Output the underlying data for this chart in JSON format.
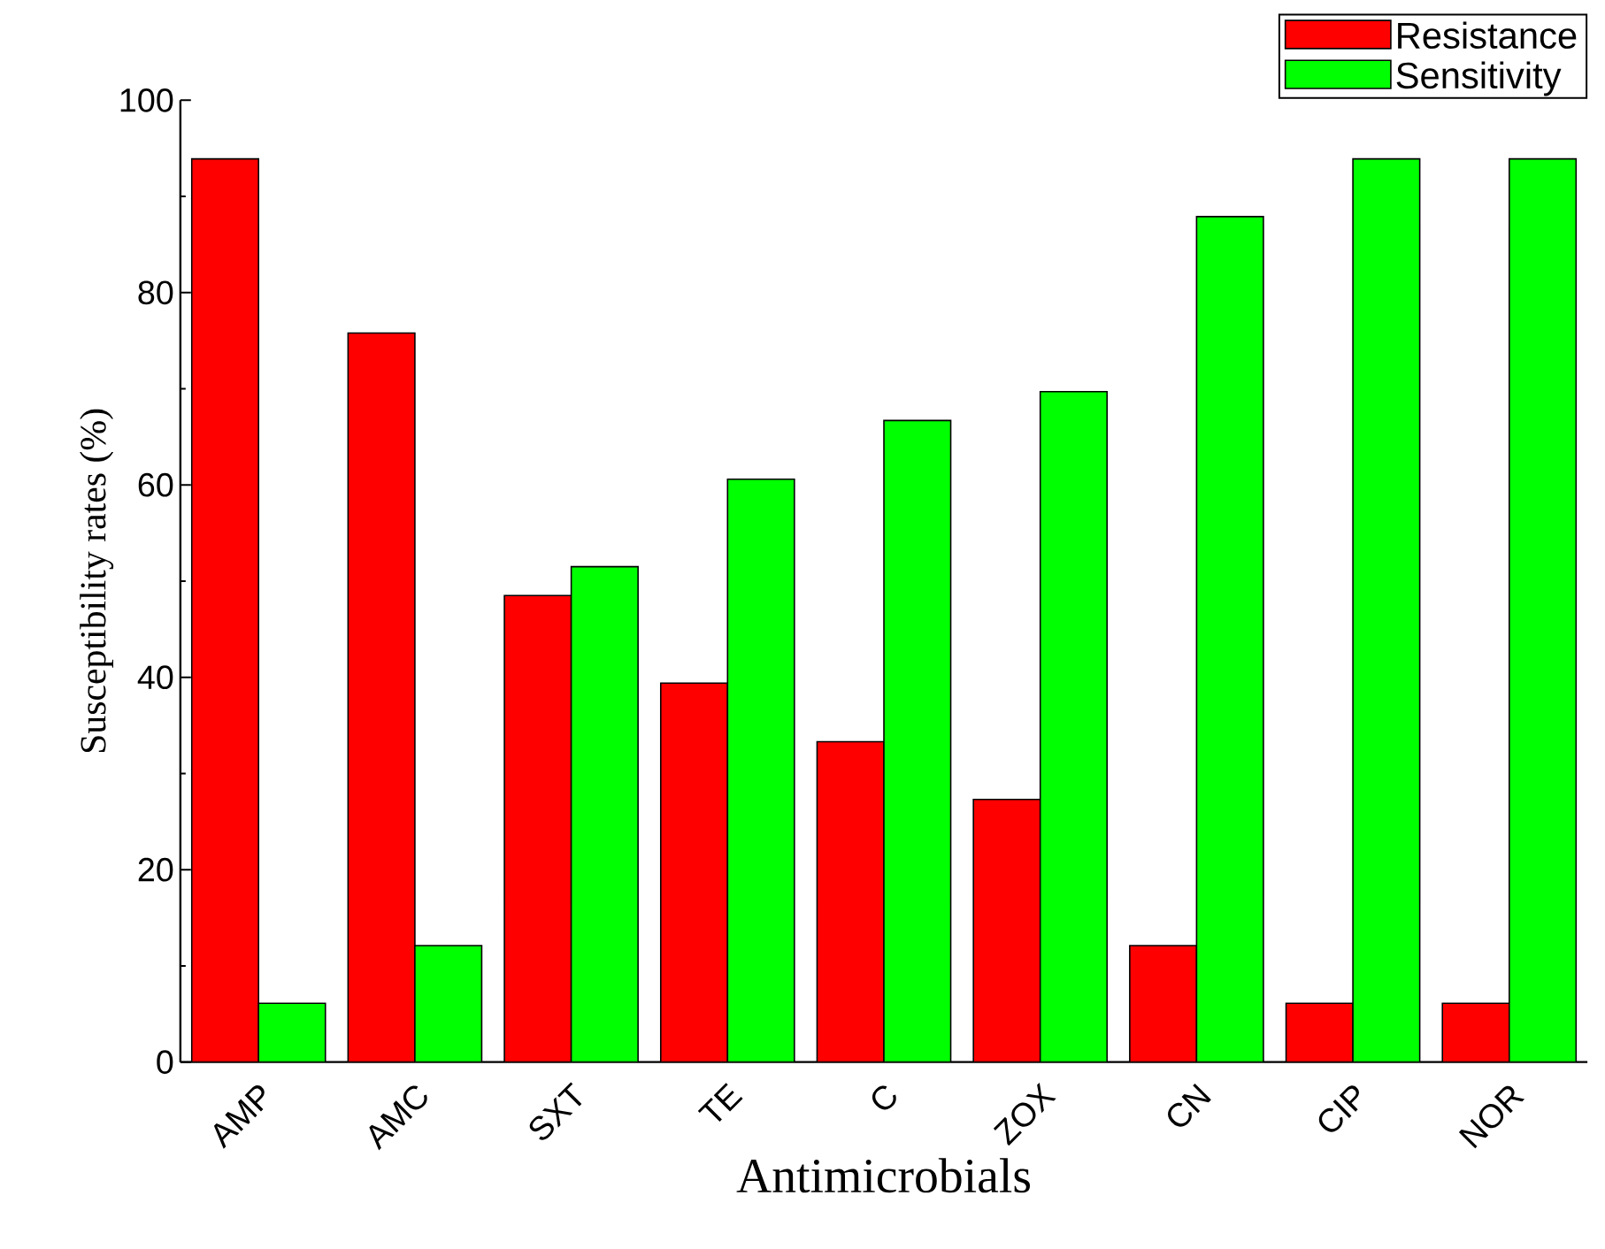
{
  "chart_data": {
    "type": "bar",
    "xlabel": "Antimicrobials",
    "ylabel": "Susceptibility rates (%)",
    "categories": [
      "AMP",
      "AMC",
      "SXT",
      "TE",
      "C",
      "ZOX",
      "CN",
      "CIP",
      "NOR"
    ],
    "series": [
      {
        "name": "Resistance",
        "color": "#ff0000",
        "values": [
          93.9,
          75.8,
          48.5,
          39.4,
          33.3,
          27.3,
          12.1,
          6.1,
          6.1
        ]
      },
      {
        "name": "Sensitivity",
        "color": "#00ff00",
        "values": [
          6.1,
          12.1,
          51.5,
          60.6,
          66.7,
          69.7,
          87.9,
          93.9,
          93.9
        ]
      }
    ],
    "ylim": [
      0,
      100
    ],
    "yticks": [
      0,
      20,
      40,
      60,
      80,
      100
    ],
    "legend": "top right",
    "grid": false
  }
}
